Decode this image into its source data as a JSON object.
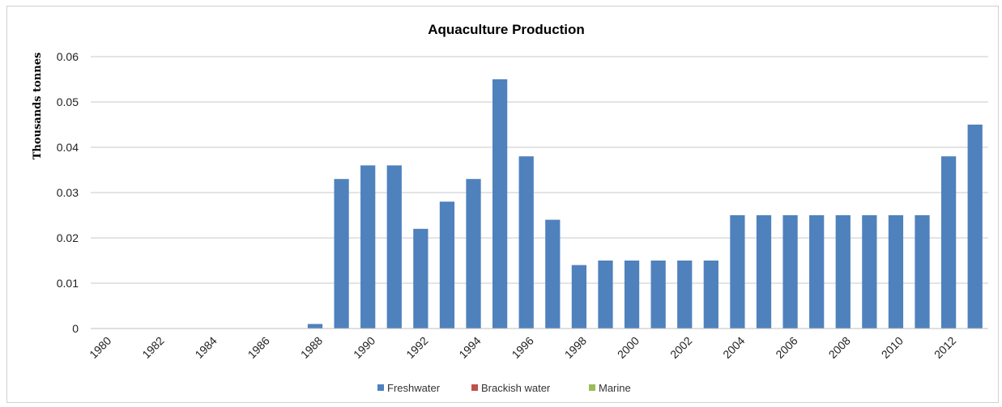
{
  "chart_data": {
    "type": "bar",
    "title": "Aquaculture Production",
    "ylabel": "Thousands tonnes",
    "xlabel": "",
    "ylim": [
      0,
      0.06
    ],
    "yticks": [
      "0",
      "0.01",
      "0.02",
      "0.03",
      "0.04",
      "0.05",
      "0.06"
    ],
    "grid": true,
    "legend_position": "bottom",
    "categories": [
      "1980",
      "1981",
      "1982",
      "1983",
      "1984",
      "1985",
      "1986",
      "1987",
      "1988",
      "1989",
      "1990",
      "1991",
      "1992",
      "1993",
      "1994",
      "1995",
      "1996",
      "1997",
      "1998",
      "1999",
      "2000",
      "2001",
      "2002",
      "2003",
      "2004",
      "2005",
      "2006",
      "2007",
      "2008",
      "2009",
      "2010",
      "2011",
      "2012",
      "2013"
    ],
    "xtick_labels": [
      "1980",
      "1982",
      "1984",
      "1986",
      "1988",
      "1990",
      "1992",
      "1994",
      "1996",
      "1998",
      "2000",
      "2002",
      "2004",
      "2006",
      "2008",
      "2010",
      "2012"
    ],
    "series": [
      {
        "name": "Freshwater",
        "color": "#4f81bd",
        "values": [
          0,
          0,
          0,
          0,
          0,
          0,
          0,
          0,
          0.001,
          0.033,
          0.036,
          0.036,
          0.022,
          0.028,
          0.033,
          0.055,
          0.038,
          0.024,
          0.014,
          0.015,
          0.015,
          0.015,
          0.015,
          0.015,
          0.025,
          0.025,
          0.025,
          0.025,
          0.025,
          0.025,
          0.025,
          0.025,
          0.038,
          0.045
        ]
      },
      {
        "name": "Brackish water",
        "color": "#c0504d",
        "values": [
          0,
          0,
          0,
          0,
          0,
          0,
          0,
          0,
          0,
          0,
          0,
          0,
          0,
          0,
          0,
          0,
          0,
          0,
          0,
          0,
          0,
          0,
          0,
          0,
          0,
          0,
          0,
          0,
          0,
          0,
          0,
          0,
          0,
          0
        ]
      },
      {
        "name": "Marine",
        "color": "#9bbb59",
        "values": [
          0,
          0,
          0,
          0,
          0,
          0,
          0,
          0,
          0,
          0,
          0,
          0,
          0,
          0,
          0,
          0,
          0,
          0,
          0,
          0,
          0,
          0,
          0,
          0,
          0,
          0,
          0,
          0,
          0,
          0,
          0,
          0,
          0,
          0
        ]
      }
    ]
  }
}
